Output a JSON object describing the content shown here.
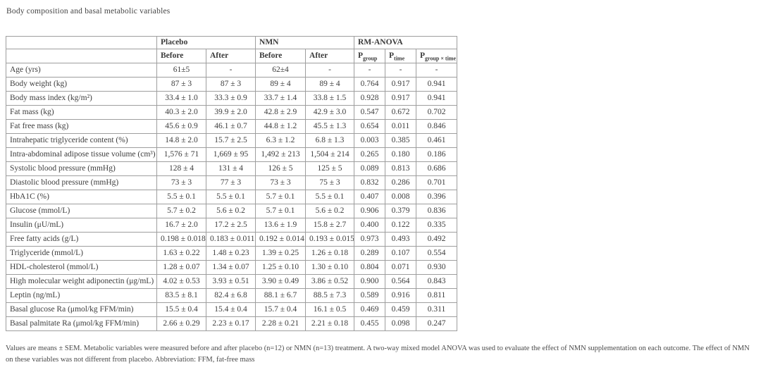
{
  "title": "Body composition and basal metabolic variables",
  "colors": {
    "text": "#3d3d3d",
    "border": "#9e9e9e",
    "background": "#ffffff"
  },
  "table": {
    "groups": {
      "placebo": "Placebo",
      "nmn": "NMN",
      "rm_anova": "RM-ANOVA"
    },
    "sub_headers": [
      "Before",
      "After",
      "Before",
      "After"
    ],
    "p_headers": [
      {
        "base": "P",
        "sub": "group"
      },
      {
        "base": "P",
        "sub": "time"
      },
      {
        "base": "P",
        "sub": "group × time"
      }
    ],
    "rows": [
      {
        "label": "Age (yrs)",
        "values": [
          "61±5",
          "-",
          "62±4",
          "-",
          "-",
          "-",
          "-"
        ]
      },
      {
        "label": "Body weight (kg)",
        "values": [
          "87 ± 3",
          "87 ± 3",
          "89 ± 4",
          "89 ± 4",
          "0.764",
          "0.917",
          "0.941"
        ]
      },
      {
        "label": "Body mass index (kg/m²)",
        "values": [
          "33.4 ± 1.0",
          "33.3 ± 0.9",
          "33.7 ± 1.4",
          "33.8 ± 1.5",
          "0.928",
          "0.917",
          "0.941"
        ]
      },
      {
        "label": "Fat mass (kg)",
        "values": [
          "40.3 ± 2.0",
          "39.9 ± 2.0",
          "42.8 ± 2.9",
          "42.9 ± 3.0",
          "0.547",
          "0.672",
          "0.702"
        ]
      },
      {
        "label": "Fat free mass (kg)",
        "values": [
          "45.6 ± 0.9",
          "46.1 ± 0.7",
          "44.8 ± 1.2",
          "45.5 ± 1.3",
          "0.654",
          "0.011",
          "0.846"
        ]
      },
      {
        "label": "Intrahepatic triglyceride content (%)",
        "values": [
          "14.8 ± 2.0",
          "15.7 ± 2.5",
          "6.3 ± 1.2",
          "6.8 ± 1.3",
          "0.003",
          "0.385",
          "0.461"
        ]
      },
      {
        "label": "Intra-abdominal adipose tissue volume (cm³)",
        "values": [
          "1,576 ± 71",
          "1,669 ± 95",
          "1,492 ± 213",
          "1,504 ± 214",
          "0.265",
          "0.180",
          "0.186"
        ]
      },
      {
        "label": "Systolic blood pressure (mmHg)",
        "values": [
          "128 ± 4",
          "131 ± 4",
          "126 ± 5",
          "125 ± 5",
          "0.089",
          "0.813",
          "0.686"
        ]
      },
      {
        "label": "Diastolic blood pressure (mmHg)",
        "values": [
          "73 ± 3",
          "77 ± 3",
          "73 ± 3",
          "75 ± 3",
          "0.832",
          "0.286",
          "0.701"
        ]
      },
      {
        "label": "HbA1C (%)",
        "values": [
          "5.5 ± 0.1",
          "5.5 ± 0.1",
          "5.7 ± 0.1",
          "5.5 ± 0.1",
          "0.407",
          "0.008",
          "0.396"
        ]
      },
      {
        "label": "Glucose (mmol/L)",
        "values": [
          "5.7 ± 0.2",
          "5.6 ± 0.2",
          "5.7 ± 0.1",
          "5.6 ± 0.2",
          "0.906",
          "0.379",
          "0.836"
        ]
      },
      {
        "label": "Insulin (μU/mL)",
        "values": [
          "16.7 ± 2.0",
          "17.2 ± 2.5",
          "13.6 ± 1.9",
          "15.8 ± 2.7",
          "0.400",
          "0.122",
          "0.335"
        ]
      },
      {
        "label": "Free fatty acids (g/L)",
        "values": [
          "0.198 ± 0.018",
          "0.183 ± 0.011",
          "0.192 ± 0.014",
          "0.193 ± 0.015",
          "0.973",
          "0.493",
          "0.492"
        ]
      },
      {
        "label": "Triglyceride (mmol/L)",
        "values": [
          "1.63 ± 0.22",
          "1.48 ± 0.23",
          "1.39 ± 0.25",
          "1.26 ± 0.18",
          "0.289",
          "0.107",
          "0.554"
        ]
      },
      {
        "label": "HDL-cholesterol (mmol/L)",
        "values": [
          "1.28 ± 0.07",
          "1.34 ± 0.07",
          "1.25 ± 0.10",
          "1.30 ± 0.10",
          "0.804",
          "0.071",
          "0.930"
        ]
      },
      {
        "label": "High molecular weight adiponectin (μg/mL)",
        "values": [
          "4.02 ± 0.53",
          "3.93 ± 0.51",
          "3.90 ± 0.49",
          "3.86 ± 0.52",
          "0.900",
          "0.564",
          "0.843"
        ]
      },
      {
        "label": "Leptin (ng/mL)",
        "values": [
          "83.5 ± 8.1",
          "82.4 ± 6.8",
          "88.1 ± 6.7",
          "88.5 ± 7.3",
          "0.589",
          "0.916",
          "0.811"
        ]
      },
      {
        "label": "Basal glucose Ra (μmol/kg FFM/min)",
        "values": [
          "15.5 ± 0.4",
          "15.4 ± 0.4",
          "15.7 ± 0.4",
          "16.1 ± 0.5",
          "0.469",
          "0.459",
          "0.311"
        ]
      },
      {
        "label": "Basal palmitate Ra (μmol/kg FFM/min)",
        "values": [
          "2.66 ± 0.29",
          "2.23 ± 0.17",
          "2.28 ± 0.21",
          "2.21 ± 0.18",
          "0.455",
          "0.098",
          "0.247"
        ]
      }
    ]
  },
  "footnote": "Values are means ± SEM. Metabolic variables were measured before and after placebo (n=12) or NMN (n=13) treatment. A two-way mixed model ANOVA was used to evaluate the effect of NMN supplementation on each outcome. The effect of NMN on these variables was not different from placebo. Abbreviation: FFM, fat-free mass"
}
